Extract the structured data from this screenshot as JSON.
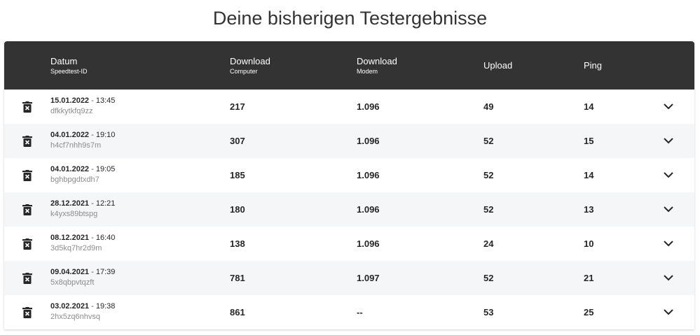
{
  "page": {
    "title": "Deine bisherigen Testergebnisse"
  },
  "header": {
    "date_label": "Datum",
    "date_sub": "Speedtest-ID",
    "download_computer_label": "Download",
    "download_computer_sub": "Computer",
    "download_modem_label": "Download",
    "download_modem_sub": "Modem",
    "upload_label": "Upload",
    "ping_label": "Ping"
  },
  "rows": [
    {
      "date": "15.01.2022",
      "sep": " - ",
      "time": "13:45",
      "id": "dfkkytkfq9zz",
      "download_computer": "217",
      "download_modem": "1.096",
      "upload": "49",
      "ping": "14"
    },
    {
      "date": "04.01.2022",
      "sep": " - ",
      "time": "19:10",
      "id": "h4cf7nhh9s7m",
      "download_computer": "307",
      "download_modem": "1.096",
      "upload": "52",
      "ping": "15"
    },
    {
      "date": "04.01.2022",
      "sep": " - ",
      "time": "19:05",
      "id": "bghbpgdtxdh7",
      "download_computer": "185",
      "download_modem": "1.096",
      "upload": "52",
      "ping": "14"
    },
    {
      "date": "28.12.2021",
      "sep": " - ",
      "time": "12:21",
      "id": "k4yxs89btspg",
      "download_computer": "180",
      "download_modem": "1.096",
      "upload": "52",
      "ping": "13"
    },
    {
      "date": "08.12.2021",
      "sep": " - ",
      "time": "16:40",
      "id": "3d5kq7hr2d9m",
      "download_computer": "138",
      "download_modem": "1.096",
      "upload": "24",
      "ping": "10"
    },
    {
      "date": "09.04.2021",
      "sep": " - ",
      "time": "17:39",
      "id": "5x8qbpvtqzft",
      "download_computer": "781",
      "download_modem": "1.097",
      "upload": "52",
      "ping": "21"
    },
    {
      "date": "03.02.2021",
      "sep": " - ",
      "time": "19:38",
      "id": "2hx5zq6nhvsq",
      "download_computer": "861",
      "download_modem": "--",
      "upload": "53",
      "ping": "25"
    }
  ],
  "icons": {
    "delete": "trash-icon",
    "expand": "chevron-down-icon"
  },
  "colors": {
    "header_bg": "#333333",
    "row_alt": "#f4f6f8"
  }
}
